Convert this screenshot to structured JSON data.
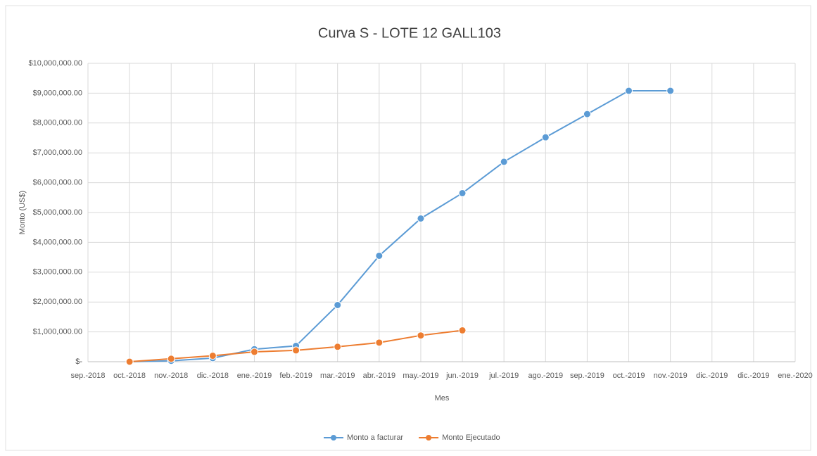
{
  "chart_data": {
    "type": "line",
    "title": "Curva S - LOTE 12 GALL103",
    "y_label": "Monto (US$)",
    "x_label": "Mes",
    "categories": [
      "sep.-2018",
      "oct.-2018",
      "nov.-2018",
      "dic.-2018",
      "ene.-2019",
      "feb.-2019",
      "mar.-2019",
      "abr.-2019",
      "may.-2019",
      "jun.-2019",
      "jul.-2019",
      "ago.-2019",
      "sep.-2019",
      "oct.-2019",
      "nov.-2019",
      "dic.-2019",
      "dic.-2019",
      "ene.-2020"
    ],
    "series": [
      {
        "name": "Monto a facturar",
        "color": "#5b9bd5",
        "values": [
          null,
          0,
          30000,
          120000,
          420000,
          530000,
          1900000,
          3550000,
          4800000,
          5650000,
          6700000,
          7520000,
          8300000,
          9080000,
          9080000,
          null,
          null,
          null
        ]
      },
      {
        "name": "Monto Ejecutado",
        "color": "#ed7d31",
        "values": [
          null,
          0,
          100000,
          200000,
          330000,
          380000,
          500000,
          640000,
          880000,
          1050000,
          null,
          null,
          null,
          null,
          null,
          null,
          null,
          null
        ]
      }
    ],
    "ylim": [
      0,
      10000000
    ],
    "yticks": [
      {
        "value": 0,
        "label": "$-"
      },
      {
        "value": 1000000,
        "label": "$1,000,000.00"
      },
      {
        "value": 2000000,
        "label": "$2,000,000.00"
      },
      {
        "value": 3000000,
        "label": "$3,000,000.00"
      },
      {
        "value": 4000000,
        "label": "$4,000,000.00"
      },
      {
        "value": 5000000,
        "label": "$5,000,000.00"
      },
      {
        "value": 6000000,
        "label": "$6,000,000.00"
      },
      {
        "value": 7000000,
        "label": "$7,000,000.00"
      },
      {
        "value": 8000000,
        "label": "$8,000,000.00"
      },
      {
        "value": 9000000,
        "label": "$9,000,000.00"
      },
      {
        "value": 10000000,
        "label": "$10,000,000.00"
      }
    ],
    "grid": true,
    "legend": "bottom"
  }
}
